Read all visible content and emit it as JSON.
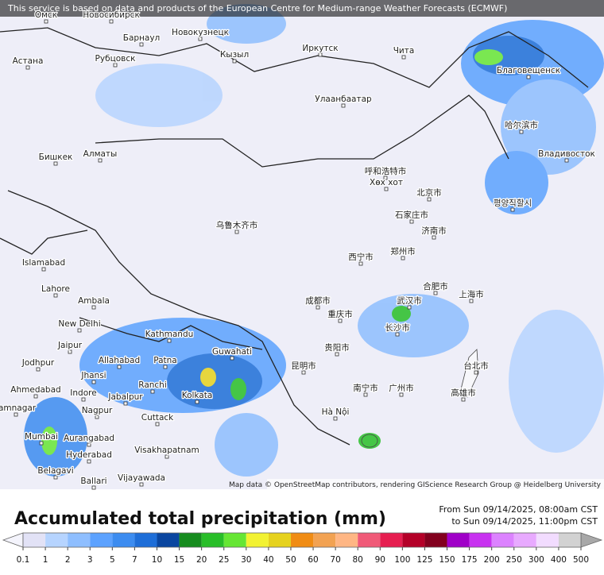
{
  "header": {
    "notice": "This service is based on data and products of the European Centre for Medium-range Weather Forecasts (ECMWF)"
  },
  "map": {
    "attribution": "Map data © OpenStreetMap contributors, rendering GIScience Research Group @ Heidelberg University",
    "cities": [
      "Омск",
      "Новосибирск",
      "Барнаул",
      "Новокузнецк",
      "Астана",
      "Рубцовск",
      "Кызыл",
      "Иркутск",
      "Чита",
      "Благовещенск",
      "Улаанбаатар",
      "Бишкек",
      "Алматы",
      "哈尔滨市",
      "Владивосток",
      "呼和浩特市",
      "Хөх хот",
      "北京市",
      "石家庄市",
      "济南市",
      "평양직할시",
      "乌鲁木齐市",
      "西宁市",
      "郑州市",
      "合肥市",
      "上海市",
      "武汉市",
      "成都市",
      "重庆市",
      "长沙市",
      "贵阳市",
      "昆明市",
      "广州市",
      "台北市",
      "高雄市",
      "南宁市",
      "Hà Nội",
      "Islamabad",
      "Lahore",
      "New Delhi",
      "Ambala",
      "Jaipur",
      "Jodhpur",
      "Kathmandu",
      "Guwahati",
      "Patna",
      "Allahabad",
      "Jhansi",
      "Ranchi",
      "Ahmedabad",
      "Indore",
      "Jabalpur",
      "Kolkata",
      "Nagpur",
      "Cuttack",
      "Jamnagar",
      "Mumbai",
      "Aurangabad",
      "Hyderabad",
      "Visakhapatnam",
      "Belagavi",
      "Vijayawada",
      "Ballari"
    ]
  },
  "legend": {
    "title": "Accumulated total precipitation (mm)",
    "period_from": "From Sun 09/14/2025, 08:00am CST",
    "period_to": "to Sun 09/14/2025, 11:00pm CST",
    "ticks": [
      0.1,
      1,
      2,
      3,
      5,
      7,
      10,
      15,
      20,
      25,
      30,
      40,
      50,
      60,
      70,
      80,
      90,
      100,
      125,
      150,
      175,
      200,
      250,
      300,
      400,
      500
    ],
    "colors": [
      "#e2e2f6",
      "#b6d4ff",
      "#8ebeff",
      "#5ca2ff",
      "#3c8cf0",
      "#1e6ed8",
      "#0a46a0",
      "#168c1e",
      "#28be28",
      "#66e634",
      "#f2f232",
      "#e6d21e",
      "#f08c14",
      "#f2a252",
      "#ffb684",
      "#f05a78",
      "#e61e50",
      "#b40028",
      "#82001e",
      "#a000c8",
      "#c832f0",
      "#dc82ff",
      "#e8aaff",
      "#f2dcff",
      "#d2d2d2"
    ],
    "under_color": "#f4f4fc",
    "over_color": "#a8a8a8"
  }
}
